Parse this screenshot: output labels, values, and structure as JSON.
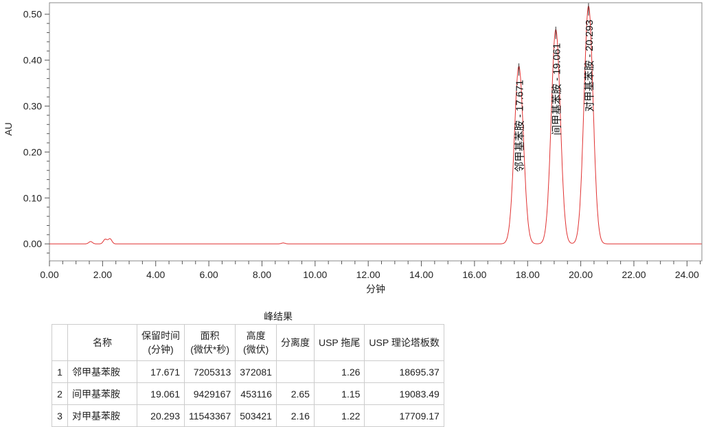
{
  "chart_data": {
    "type": "line",
    "xlabel": "分钟",
    "ylabel": "AU",
    "xlim": [
      0,
      24.56
    ],
    "ylim": [
      -0.037,
      0.525
    ],
    "xticks": [
      "0.00",
      "2.00",
      "4.00",
      "6.00",
      "8.00",
      "10.00",
      "12.00",
      "14.00",
      "16.00",
      "18.00",
      "20.00",
      "22.00",
      "24.00"
    ],
    "yticks": [
      "0.00",
      "0.10",
      "0.20",
      "0.30",
      "0.40",
      "0.50"
    ],
    "grid": false,
    "line_color": "#e03030",
    "peaks": [
      {
        "rt": 17.671,
        "height": 0.387,
        "label": "邻甲基苯胺 - 17.671"
      },
      {
        "rt": 19.061,
        "height": 0.467,
        "label": "间甲基苯胺 - 19.061"
      },
      {
        "rt": 20.293,
        "height": 0.518,
        "label": "对甲基苯胺 - 20.293"
      }
    ],
    "baseline_features": [
      {
        "rt": 1.55,
        "height": 0.005
      },
      {
        "rt": 2.1,
        "height": 0.01
      },
      {
        "rt": 2.28,
        "height": 0.011
      },
      {
        "rt": 8.8,
        "height": 0.002
      }
    ]
  },
  "table": {
    "title": "峰结果",
    "headers": [
      [
        "",
        ""
      ],
      [
        "名称",
        ""
      ],
      [
        "保留时间",
        "(分钟)"
      ],
      [
        "面积",
        "(微伏*秒)"
      ],
      [
        "高度",
        "(微伏)"
      ],
      [
        "分离度",
        ""
      ],
      [
        "USP 拖尾",
        ""
      ],
      [
        "USP 理论塔板数",
        ""
      ]
    ],
    "rows": [
      [
        "1",
        "邻甲基苯胺",
        "17.671",
        "7205313",
        "372081",
        "",
        "1.26",
        "18695.37"
      ],
      [
        "2",
        "间甲基苯胺",
        "19.061",
        "9429167",
        "453116",
        "2.65",
        "1.15",
        "19083.49"
      ],
      [
        "3",
        "对甲基苯胺",
        "20.293",
        "11543367",
        "503421",
        "2.16",
        "1.22",
        "17709.17"
      ]
    ]
  }
}
